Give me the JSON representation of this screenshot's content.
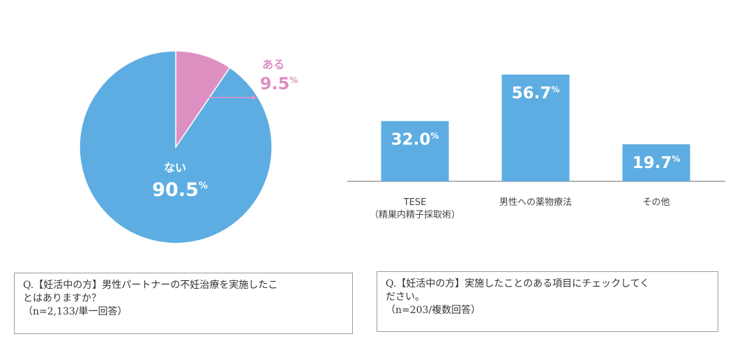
{
  "colors": {
    "primary": "#5dade2",
    "accent": "#de8fc2",
    "axis": "#888888",
    "label_text": "#444444"
  },
  "chart_data": [
    {
      "type": "pie",
      "slices": [
        {
          "label": "ある",
          "value": 9.5,
          "display": "9.5",
          "unit": "%",
          "color": "#de8fc2"
        },
        {
          "label": "ない",
          "value": 90.5,
          "display": "90.5",
          "unit": "%",
          "color": "#5dade2"
        }
      ]
    },
    {
      "type": "bar",
      "categories": [
        [
          "TESE",
          "（精巣内精子採取術）"
        ],
        [
          "男性への薬物療法"
        ],
        [
          "その他"
        ]
      ],
      "values": [
        32.0,
        56.7,
        19.7
      ],
      "value_labels": [
        "32.0",
        "56.7",
        "19.7"
      ],
      "unit": "%",
      "color": "#5dade2"
    }
  ],
  "question_boxes": [
    {
      "lines": [
        "Q.【妊活中の方】男性パートナーの不妊治療を実施したこ",
        "とはありますか？",
        "（n=2,133/単一回答）"
      ]
    },
    {
      "lines": [
        "Q.【妊活中の方】実施したことのある項目にチェックしてく",
        "ださい。",
        "（n=203/複数回答）"
      ]
    }
  ]
}
